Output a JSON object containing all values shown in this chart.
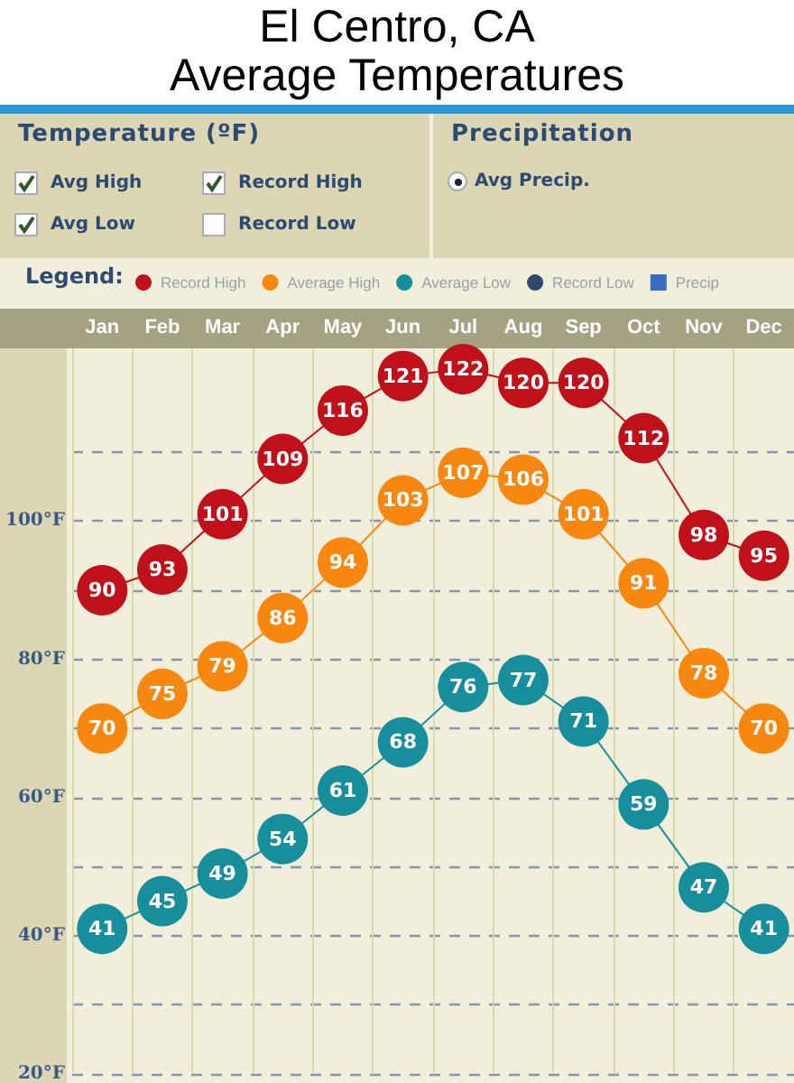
{
  "chart_data": {
    "type": "line",
    "title": "El Centro, CA\nAverage Temperatures",
    "legend_title": "Legend:",
    "annotations": [
      "Temperature (ºF)",
      "Avg High",
      "Record High",
      "Avg Low",
      "Record Low",
      "Precipitation",
      "Avg Precip."
    ],
    "categories": [
      "Jan",
      "Feb",
      "Mar",
      "Apr",
      "May",
      "Jun",
      "Jul",
      "Aug",
      "Sep",
      "Oct",
      "Nov",
      "Dec"
    ],
    "series": [
      {
        "name": "Record High",
        "color": "#c0111a",
        "values": [
          90,
          93,
          101,
          109,
          116,
          121,
          122,
          120,
          120,
          112,
          98,
          95
        ]
      },
      {
        "name": "Average High",
        "color": "#f7870f",
        "values": [
          70,
          75,
          79,
          86,
          94,
          103,
          107,
          106,
          101,
          91,
          78,
          70
        ]
      },
      {
        "name": "Average Low",
        "color": "#178e9b",
        "values": [
          41,
          45,
          49,
          54,
          61,
          68,
          76,
          77,
          71,
          59,
          47,
          41
        ]
      },
      {
        "name": "Record Low",
        "color": "#2e4a6e",
        "values": [
          null,
          null,
          null,
          null,
          null,
          null,
          null,
          null,
          null,
          null,
          null,
          null
        ]
      },
      {
        "name": "Precip",
        "type": "bar",
        "color": "#3a6cc0",
        "values": [
          null,
          null,
          null,
          null,
          null,
          null,
          null,
          null,
          null,
          null,
          null,
          null
        ]
      }
    ],
    "ylim": [
      20,
      125
    ],
    "yticks": [
      {
        "value": 20,
        "label": "20°F"
      },
      {
        "value": 30,
        "label": null
      },
      {
        "value": 40,
        "label": "40°F"
      },
      {
        "value": 50,
        "label": null
      },
      {
        "value": 60,
        "label": "60°F"
      },
      {
        "value": 70,
        "label": null
      },
      {
        "value": 80,
        "label": "80°F"
      },
      {
        "value": 90,
        "label": null
      },
      {
        "value": 100,
        "label": "100°F"
      },
      {
        "value": 110,
        "label": null
      }
    ],
    "grid": true,
    "legend": "top",
    "marker": "circle",
    "line_style": "solid",
    "data_labels": true
  }
}
